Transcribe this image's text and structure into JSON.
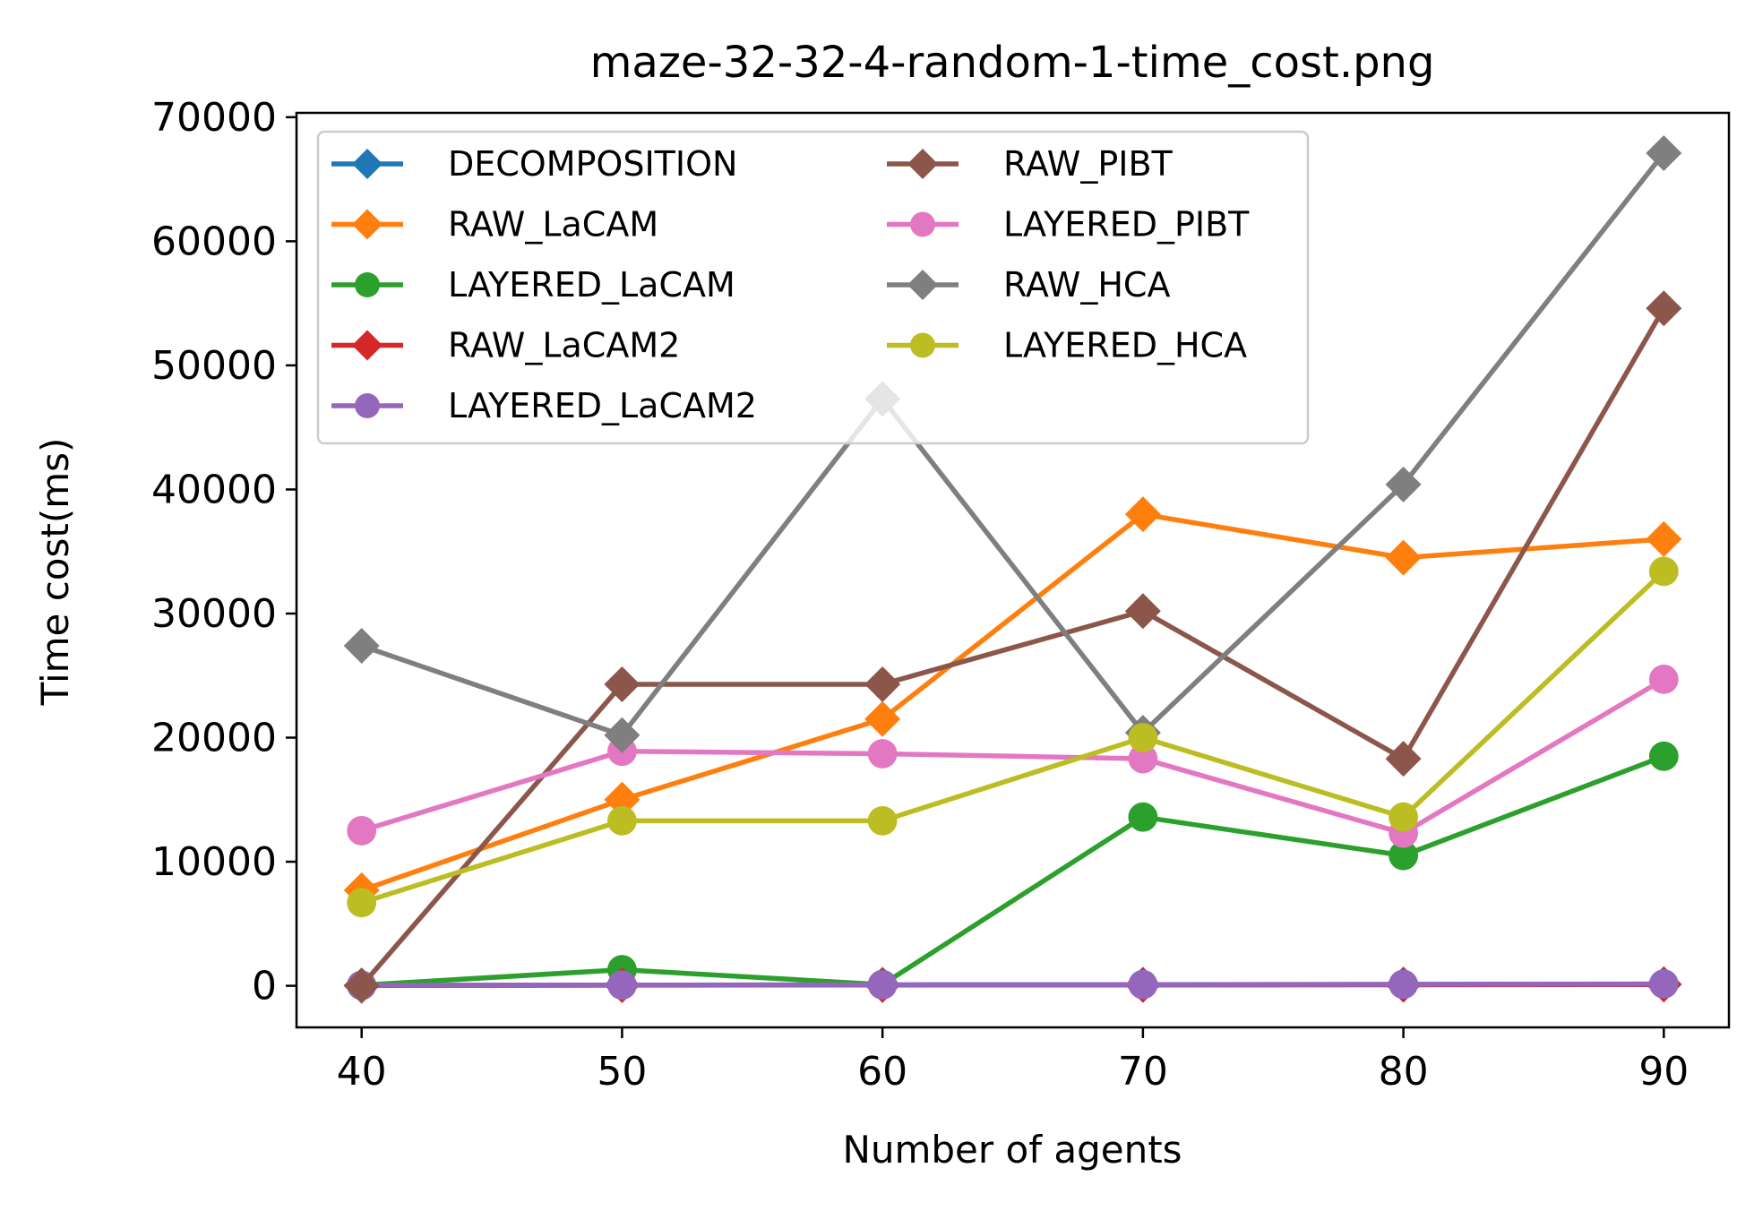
{
  "chart_data": {
    "type": "line",
    "title": "maze-32-32-4-random-1-time_cost.png",
    "xlabel": "Number of agents",
    "ylabel": "Time cost(ms)",
    "x": [
      40,
      50,
      60,
      70,
      80,
      90
    ],
    "xticks": [
      "40",
      "50",
      "60",
      "70",
      "80",
      "90"
    ],
    "xlim": [
      37.5,
      92.5
    ],
    "yticks": [
      "0",
      "10000",
      "20000",
      "30000",
      "40000",
      "50000",
      "60000",
      "70000"
    ],
    "ylim": [
      -3350,
      70350
    ],
    "grid": false,
    "legend_placement": "top-left, 2 columns",
    "series": [
      {
        "name": "DECOMPOSITION",
        "color": "#1f77b4",
        "marker": "diamond",
        "values": [
          30,
          60,
          80,
          90,
          110,
          130
        ]
      },
      {
        "name": "RAW_LaCAM",
        "color": "#ff7f0e",
        "marker": "diamond",
        "values": [
          7700,
          15000,
          21500,
          38000,
          34500,
          36000
        ]
      },
      {
        "name": "LAYERED_LaCAM",
        "color": "#2ca02c",
        "marker": "circle",
        "values": [
          50,
          1300,
          100,
          13600,
          10500,
          18500
        ]
      },
      {
        "name": "RAW_LaCAM2",
        "color": "#d62728",
        "marker": "diamond",
        "values": [
          20,
          50,
          60,
          70,
          80,
          100
        ]
      },
      {
        "name": "LAYERED_LaCAM2",
        "color": "#9467bd",
        "marker": "circle",
        "values": [
          30,
          60,
          80,
          100,
          120,
          150
        ]
      },
      {
        "name": "RAW_PIBT",
        "color": "#8c564b",
        "marker": "diamond",
        "values": [
          0,
          24300,
          24300,
          30200,
          18300,
          54600
        ]
      },
      {
        "name": "LAYERED_PIBT",
        "color": "#e377c2",
        "marker": "circle",
        "values": [
          12500,
          18900,
          18700,
          18300,
          12300,
          24700
        ]
      },
      {
        "name": "RAW_HCA",
        "color": "#7f7f7f",
        "marker": "diamond",
        "values": [
          27400,
          20200,
          47300,
          20400,
          40400,
          67100
        ]
      },
      {
        "name": "LAYERED_HCA",
        "color": "#bcbd22",
        "marker": "circle",
        "values": [
          6700,
          13300,
          13300,
          20000,
          13600,
          33400
        ]
      }
    ]
  }
}
